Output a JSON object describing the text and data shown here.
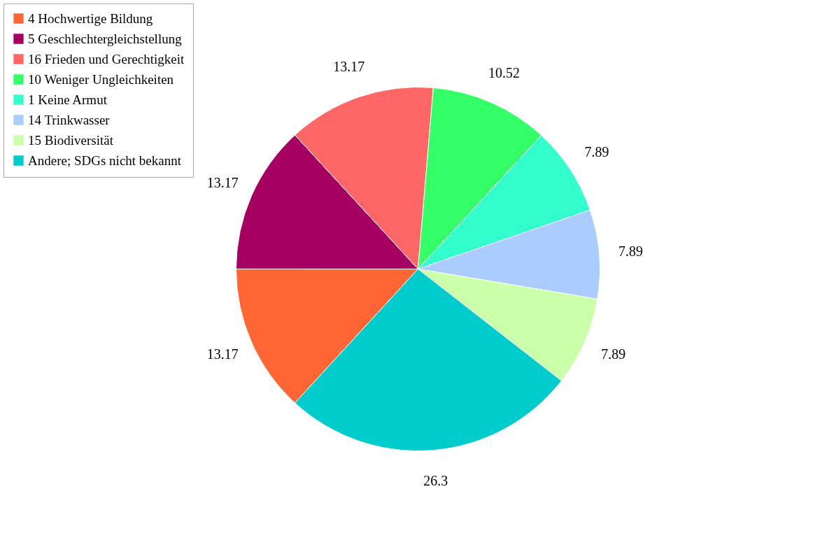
{
  "chart_data": {
    "type": "pie",
    "categories": [
      "4 Hochwertige Bildung",
      "5 Geschlechtergleichstellung",
      "16 Frieden und Gerechtigkeit",
      "10 Weniger Ungleichkeiten",
      "1 Keine Armut",
      "14 Trinkwasser",
      "15 Biodiversität",
      "Andere; SDGs nicht bekannt"
    ],
    "values": [
      13.17,
      13.17,
      13.17,
      10.52,
      7.89,
      7.89,
      7.89,
      26.3
    ],
    "colors": [
      "#ff6633",
      "#a50062",
      "#ff6666",
      "#33ff66",
      "#33ffcc",
      "#aaccff",
      "#ccffaa",
      "#00cccc"
    ],
    "data_labels": true,
    "legend": "top left"
  }
}
